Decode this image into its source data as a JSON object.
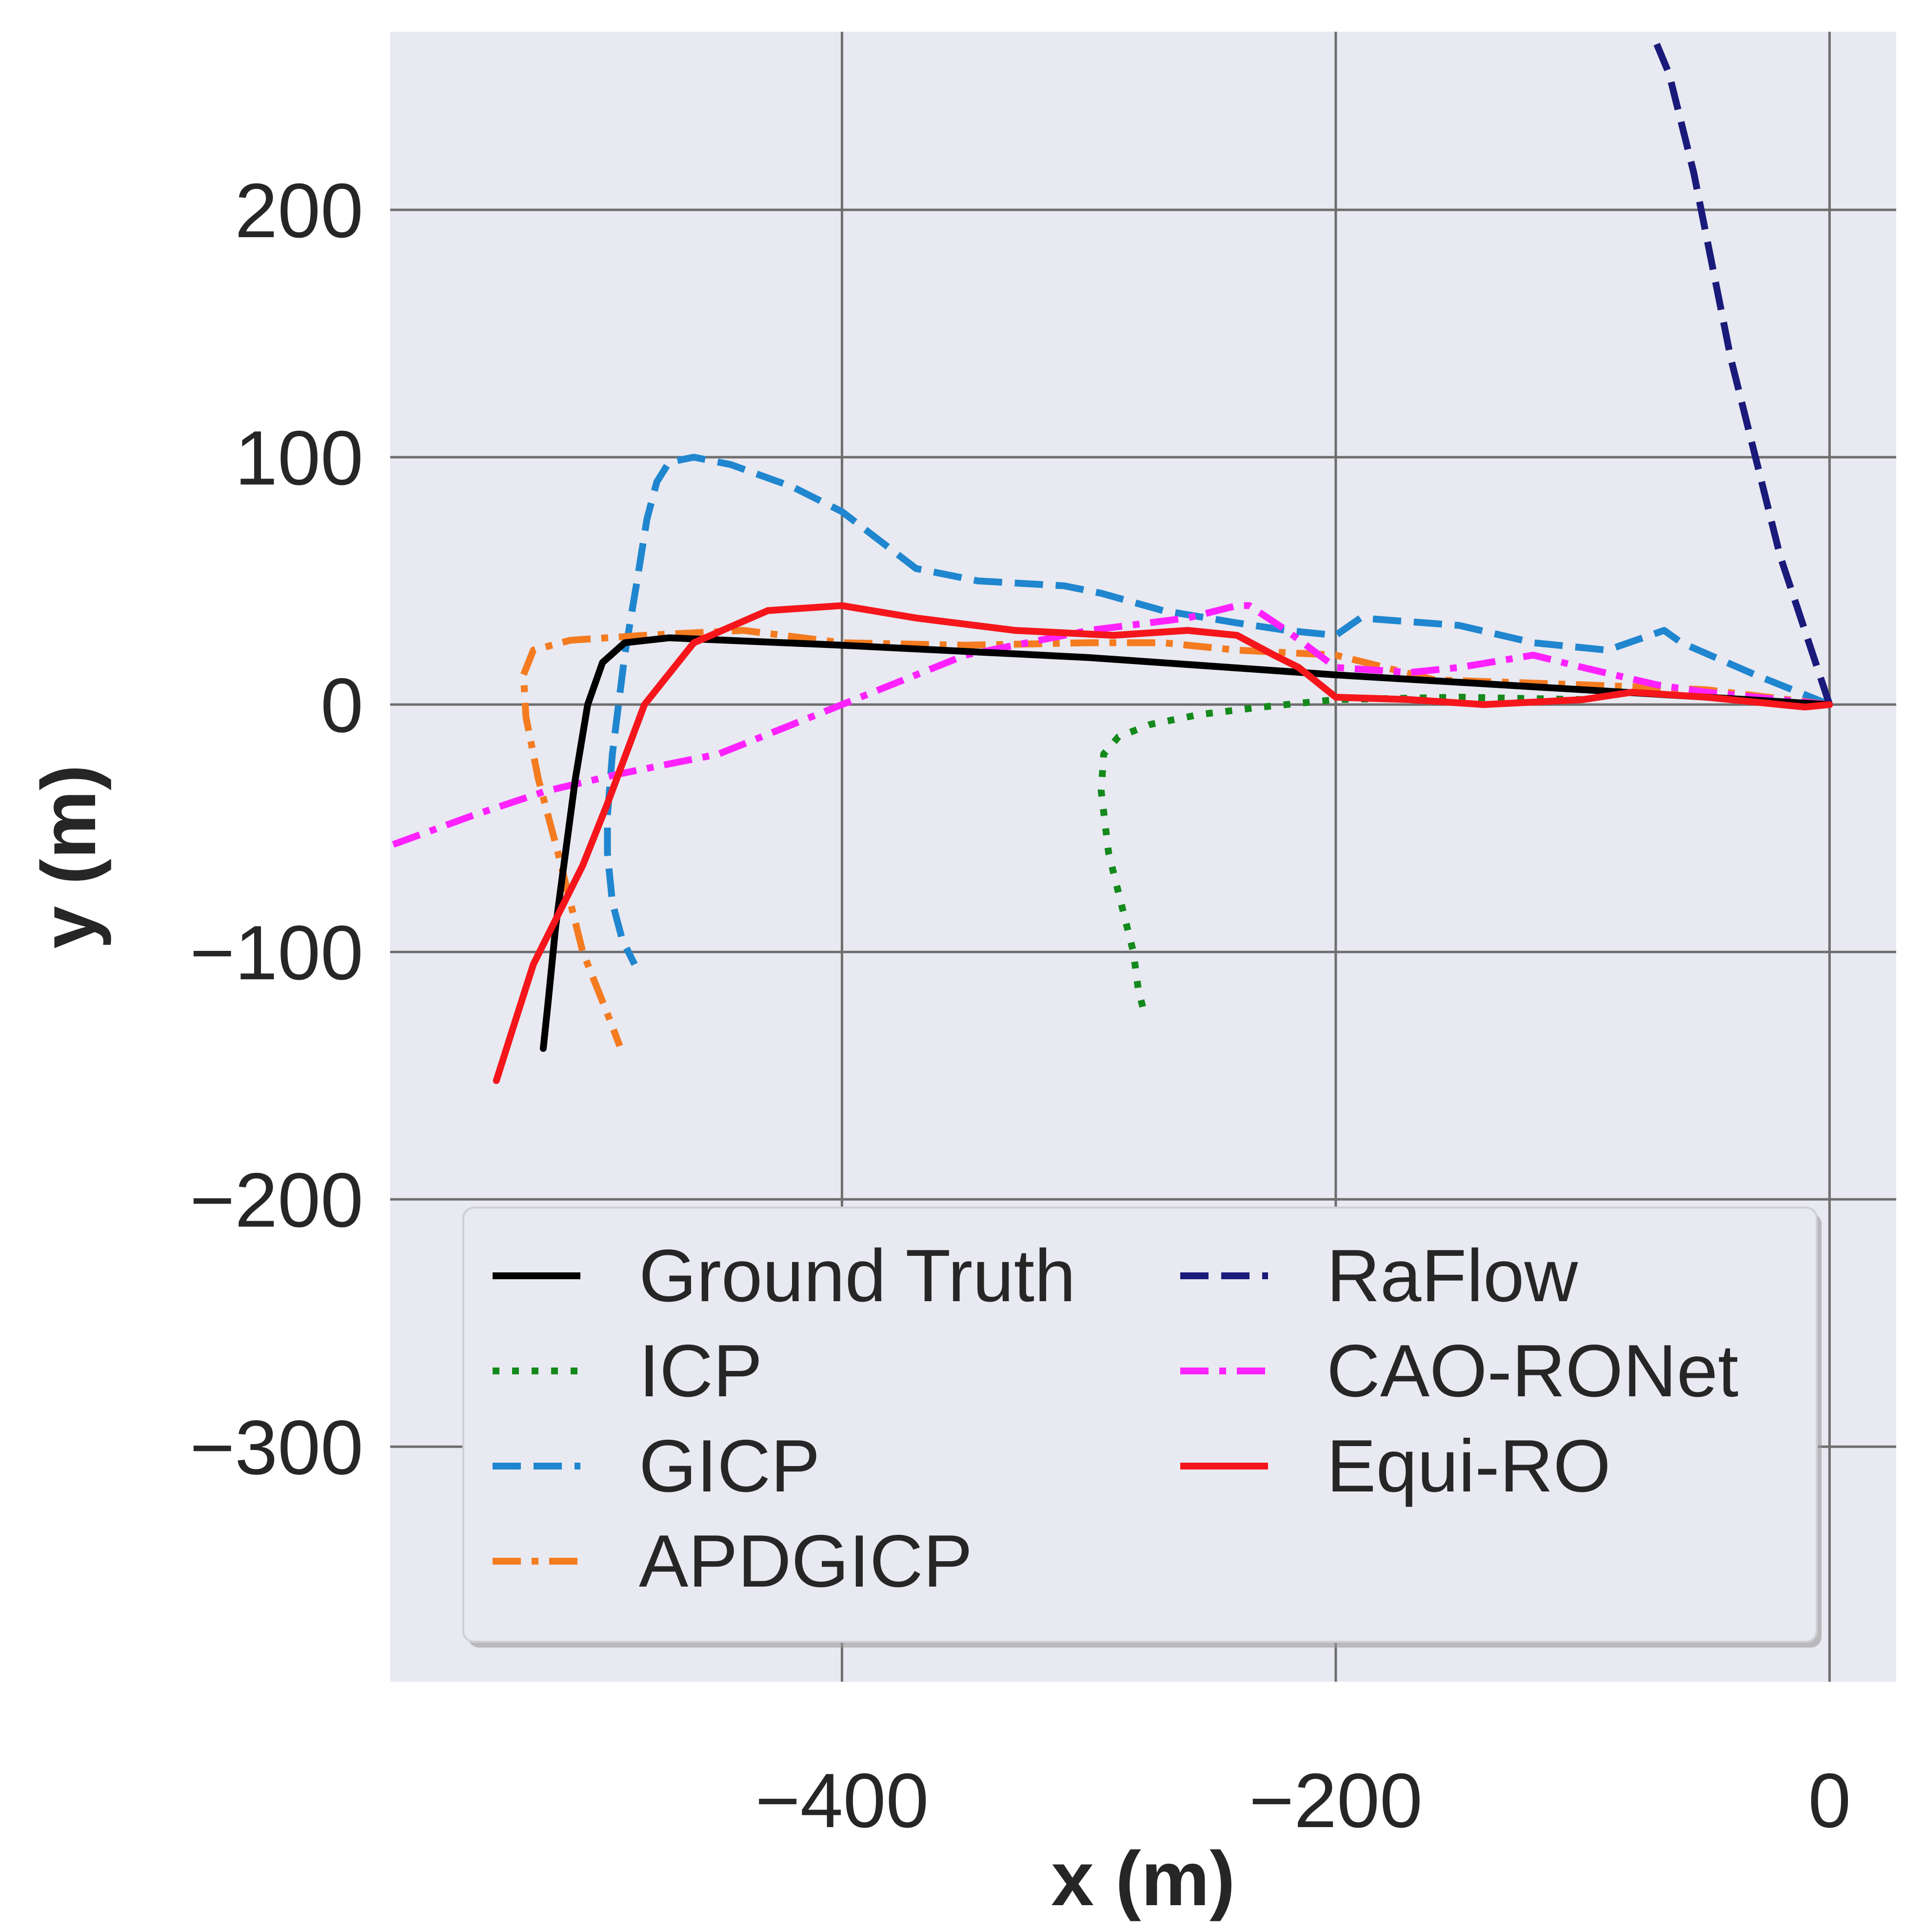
{
  "chart_data": {
    "type": "line",
    "title": "",
    "xlabel": "x (m)",
    "ylabel": "y (m)",
    "xlim": [
      -583,
      27
    ],
    "ylim": [
      -395,
      272
    ],
    "xticks": [
      -400,
      -200,
      0
    ],
    "xtick_labels": [
      "−400",
      "−200",
      "0"
    ],
    "yticks": [
      200,
      100,
      0,
      -100,
      -200,
      -300
    ],
    "ytick_labels": [
      "200",
      "100",
      "0",
      "−100",
      "−200",
      "−300"
    ],
    "grid": true,
    "legend": {
      "placement": "lower-center",
      "columns": 2
    },
    "series": [
      {
        "name": "Ground Truth",
        "color": "#000000",
        "style": "solid",
        "x": [
          0,
          -100,
          -200,
          -300,
          -400,
          -470,
          -488,
          -497,
          -503,
          -508,
          -512,
          -516,
          -519,
          -521
        ],
        "y": [
          0,
          6,
          12,
          19,
          24,
          27,
          25,
          17,
          0,
          -30,
          -60,
          -90,
          -120,
          -139
        ]
      },
      {
        "name": "ICP",
        "color": "#148a1c",
        "style": "dotted",
        "x": [
          -100,
          -150,
          -200,
          -230,
          -255,
          -275,
          -288,
          -294,
          -295,
          -292,
          -287,
          -282,
          -280,
          -278
        ],
        "y": [
          2,
          3,
          2,
          -1,
          -4,
          -8,
          -13,
          -20,
          -35,
          -60,
          -80,
          -100,
          -115,
          -123
        ]
      },
      {
        "name": "GICP",
        "color": "#1f86cf",
        "style": "dashed",
        "x": [
          0,
          -30,
          -60,
          -67,
          -90,
          -120,
          -150,
          -190,
          -200,
          -220,
          -240,
          -270,
          -295,
          -310,
          -345,
          -370,
          -400,
          -420,
          -445,
          -460,
          -470,
          -475,
          -479,
          -483,
          -488,
          -493,
          -495,
          -495,
          -493,
          -489,
          -484
        ],
        "y": [
          0,
          12,
          25,
          30,
          22,
          25,
          32,
          35,
          28,
          30,
          33,
          38,
          45,
          48,
          50,
          55,
          78,
          88,
          97,
          100,
          98,
          90,
          75,
          50,
          20,
          -20,
          -45,
          -60,
          -80,
          -95,
          -105
        ]
      },
      {
        "name": "APDGICP",
        "color": "#f47b20",
        "style": "dashdot",
        "x": [
          0,
          -50,
          -100,
          -160,
          -200,
          -240,
          -270,
          -300,
          -350,
          -400,
          -440,
          -480,
          -510,
          -525,
          -529,
          -528,
          -523,
          -515,
          -505,
          -495,
          -490
        ],
        "y": [
          0,
          6,
          8,
          10,
          20,
          22,
          25,
          25,
          24,
          25,
          30,
          28,
          26,
          22,
          12,
          -5,
          -30,
          -60,
          -100,
          -125,
          -138
        ]
      },
      {
        "name": "RaFlow",
        "color": "#1a1a7a",
        "style": "dashed",
        "x": [
          0,
          -20,
          -40,
          -55,
          -65,
          -70
        ],
        "y": [
          0,
          60,
          140,
          215,
          255,
          267
        ]
      },
      {
        "name": "CAO-RONet",
        "color": "#ff22ff",
        "style": "dashdot",
        "x": [
          0,
          -50,
          -70,
          -100,
          -120,
          -150,
          -170,
          -200,
          -220,
          -235,
          -240,
          -260,
          -300,
          -350,
          -400,
          -450,
          -490,
          -520,
          -550,
          -583
        ],
        "y": [
          0,
          5,
          8,
          15,
          20,
          15,
          13,
          15,
          30,
          40,
          40,
          35,
          30,
          20,
          0,
          -20,
          -28,
          -35,
          -45,
          -57
        ]
      },
      {
        "name": "Equi-RO",
        "color": "#f5161b",
        "style": "solid",
        "x": [
          0,
          -10,
          -50,
          -80,
          -100,
          -140,
          -170,
          -200,
          -215,
          -225,
          -240,
          -260,
          -290,
          -330,
          -370,
          -400,
          -430,
          -460,
          -480,
          -495,
          -505,
          -515,
          -525,
          -533,
          -540
        ],
        "y": [
          0,
          -1,
          3,
          5,
          2,
          0,
          2,
          3,
          15,
          20,
          28,
          30,
          28,
          30,
          35,
          40,
          38,
          25,
          0,
          -40,
          -65,
          -85,
          -105,
          -130,
          -152
        ]
      }
    ]
  }
}
